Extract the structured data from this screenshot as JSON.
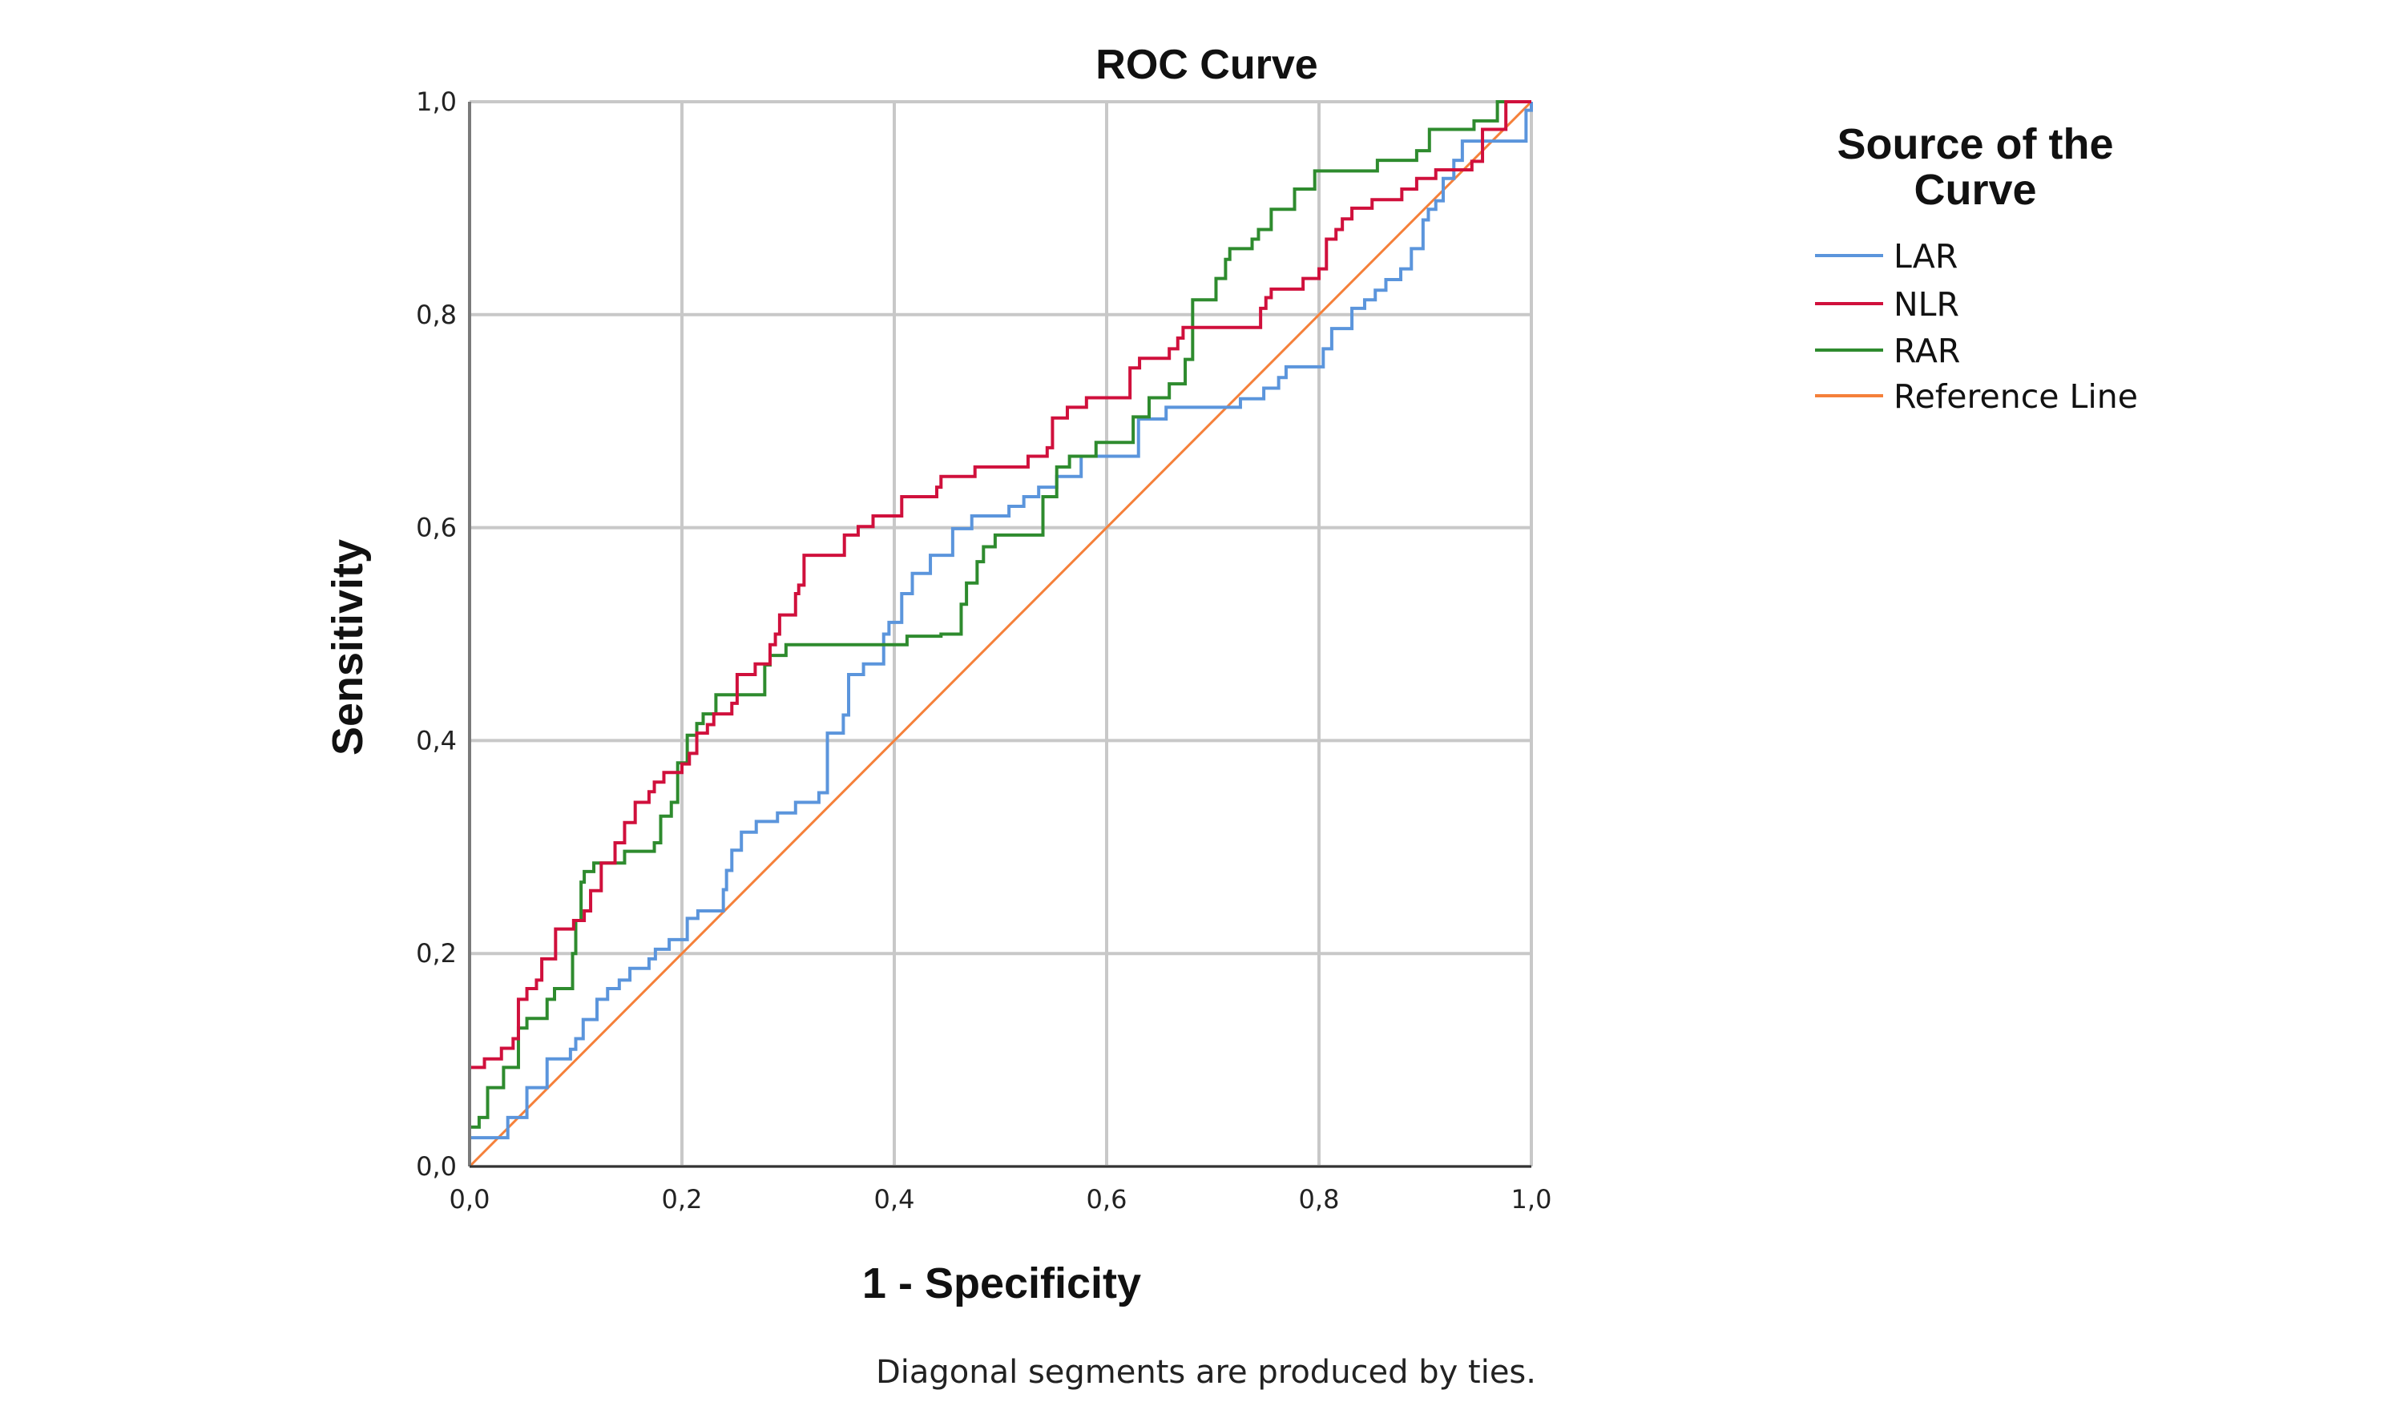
{
  "chart_data": {
    "type": "line",
    "title": "ROC Curve",
    "xlabel": "1 - Specificity",
    "ylabel": "Sensitivity",
    "footnote": "Diagonal segments are produced by ties.",
    "xlim": [
      0,
      1
    ],
    "ylim": [
      0,
      1
    ],
    "grid": true,
    "xticks": [
      "0,0",
      "0,2",
      "0,4",
      "0,6",
      "0,8",
      "1,0"
    ],
    "yticks": [
      "0,0",
      "0,2",
      "0,4",
      "0,6",
      "0,8",
      "1,0"
    ],
    "legend": {
      "title_lines": [
        "Source of the",
        "Curve"
      ],
      "placement": "right"
    },
    "series": [
      {
        "name": "LAR",
        "color": "#5b95dc",
        "step": true,
        "points": [
          [
            0,
            0
          ],
          [
            0,
            0.027
          ],
          [
            0.036,
            0.046
          ],
          [
            0.054,
            0.074
          ],
          [
            0.073,
            0.101
          ],
          [
            0.095,
            0.11
          ],
          [
            0.1,
            0.12
          ],
          [
            0.107,
            0.138
          ],
          [
            0.12,
            0.157
          ],
          [
            0.13,
            0.167
          ],
          [
            0.141,
            0.175
          ],
          [
            0.151,
            0.186
          ],
          [
            0.169,
            0.195
          ],
          [
            0.175,
            0.204
          ],
          [
            0.188,
            0.213
          ],
          [
            0.205,
            0.233
          ],
          [
            0.215,
            0.24
          ],
          [
            0.239,
            0.26
          ],
          [
            0.242,
            0.278
          ],
          [
            0.247,
            0.297
          ],
          [
            0.256,
            0.314
          ],
          [
            0.27,
            0.324
          ],
          [
            0.29,
            0.332
          ],
          [
            0.307,
            0.342
          ],
          [
            0.329,
            0.351
          ],
          [
            0.337,
            0.407
          ],
          [
            0.352,
            0.424
          ],
          [
            0.357,
            0.462
          ],
          [
            0.371,
            0.472
          ],
          [
            0.39,
            0.5
          ],
          [
            0.395,
            0.511
          ],
          [
            0.407,
            0.538
          ],
          [
            0.417,
            0.557
          ],
          [
            0.434,
            0.574
          ],
          [
            0.455,
            0.599
          ],
          [
            0.473,
            0.611
          ],
          [
            0.508,
            0.62
          ],
          [
            0.522,
            0.629
          ],
          [
            0.536,
            0.638
          ],
          [
            0.553,
            0.648
          ],
          [
            0.576,
            0.667
          ],
          [
            0.63,
            0.702
          ],
          [
            0.656,
            0.713
          ],
          [
            0.726,
            0.721
          ],
          [
            0.748,
            0.731
          ],
          [
            0.762,
            0.741
          ],
          [
            0.769,
            0.751
          ],
          [
            0.804,
            0.768
          ],
          [
            0.812,
            0.787
          ],
          [
            0.831,
            0.806
          ],
          [
            0.843,
            0.814
          ],
          [
            0.853,
            0.823
          ],
          [
            0.863,
            0.833
          ],
          [
            0.877,
            0.843
          ],
          [
            0.887,
            0.862
          ],
          [
            0.898,
            0.889
          ],
          [
            0.903,
            0.899
          ],
          [
            0.91,
            0.907
          ],
          [
            0.917,
            0.928
          ],
          [
            0.927,
            0.945
          ],
          [
            0.935,
            0.963
          ],
          [
            0.995,
            0.992
          ],
          [
            1,
            1
          ]
        ]
      },
      {
        "name": "NLR",
        "color": "#d0103c",
        "step": true,
        "points": [
          [
            0,
            0
          ],
          [
            0,
            0.093
          ],
          [
            0.014,
            0.101
          ],
          [
            0.03,
            0.111
          ],
          [
            0.041,
            0.12
          ],
          [
            0.046,
            0.157
          ],
          [
            0.054,
            0.167
          ],
          [
            0.063,
            0.175
          ],
          [
            0.068,
            0.195
          ],
          [
            0.081,
            0.223
          ],
          [
            0.098,
            0.231
          ],
          [
            0.108,
            0.24
          ],
          [
            0.114,
            0.259
          ],
          [
            0.124,
            0.285
          ],
          [
            0.137,
            0.304
          ],
          [
            0.146,
            0.323
          ],
          [
            0.156,
            0.342
          ],
          [
            0.169,
            0.352
          ],
          [
            0.174,
            0.361
          ],
          [
            0.183,
            0.37
          ],
          [
            0.2,
            0.378
          ],
          [
            0.207,
            0.388
          ],
          [
            0.214,
            0.407
          ],
          [
            0.224,
            0.415
          ],
          [
            0.23,
            0.425
          ],
          [
            0.247,
            0.435
          ],
          [
            0.252,
            0.462
          ],
          [
            0.269,
            0.472
          ],
          [
            0.283,
            0.49
          ],
          [
            0.288,
            0.5
          ],
          [
            0.292,
            0.518
          ],
          [
            0.307,
            0.538
          ],
          [
            0.31,
            0.546
          ],
          [
            0.315,
            0.574
          ],
          [
            0.353,
            0.593
          ],
          [
            0.366,
            0.601
          ],
          [
            0.38,
            0.611
          ],
          [
            0.407,
            0.629
          ],
          [
            0.44,
            0.638
          ],
          [
            0.444,
            0.648
          ],
          [
            0.476,
            0.657
          ],
          [
            0.526,
            0.667
          ],
          [
            0.544,
            0.675
          ],
          [
            0.549,
            0.703
          ],
          [
            0.563,
            0.713
          ],
          [
            0.581,
            0.722
          ],
          [
            0.622,
            0.75
          ],
          [
            0.631,
            0.759
          ],
          [
            0.659,
            0.768
          ],
          [
            0.667,
            0.778
          ],
          [
            0.672,
            0.788
          ],
          [
            0.745,
            0.806
          ],
          [
            0.75,
            0.816
          ],
          [
            0.755,
            0.824
          ],
          [
            0.785,
            0.834
          ],
          [
            0.8,
            0.843
          ],
          [
            0.807,
            0.871
          ],
          [
            0.816,
            0.88
          ],
          [
            0.822,
            0.89
          ],
          [
            0.831,
            0.9
          ],
          [
            0.85,
            0.908
          ],
          [
            0.878,
            0.918
          ],
          [
            0.892,
            0.928
          ],
          [
            0.91,
            0.936
          ],
          [
            0.944,
            0.944
          ],
          [
            0.954,
            0.974
          ],
          [
            0.976,
            1.0
          ],
          [
            1,
            1
          ]
        ]
      },
      {
        "name": "RAR",
        "color": "#2e8b2e",
        "step": true,
        "points": [
          [
            0,
            0
          ],
          [
            0,
            0.037
          ],
          [
            0.009,
            0.046
          ],
          [
            0.017,
            0.074
          ],
          [
            0.032,
            0.093
          ],
          [
            0.046,
            0.13
          ],
          [
            0.054,
            0.139
          ],
          [
            0.073,
            0.157
          ],
          [
            0.08,
            0.167
          ],
          [
            0.097,
            0.2
          ],
          [
            0.1,
            0.231
          ],
          [
            0.105,
            0.267
          ],
          [
            0.108,
            0.277
          ],
          [
            0.117,
            0.285
          ],
          [
            0.146,
            0.296
          ],
          [
            0.174,
            0.304
          ],
          [
            0.18,
            0.329
          ],
          [
            0.19,
            0.342
          ],
          [
            0.196,
            0.379
          ],
          [
            0.205,
            0.405
          ],
          [
            0.214,
            0.416
          ],
          [
            0.22,
            0.425
          ],
          [
            0.232,
            0.443
          ],
          [
            0.278,
            0.471
          ],
          [
            0.283,
            0.48
          ],
          [
            0.298,
            0.49
          ],
          [
            0.412,
            0.498
          ],
          [
            0.444,
            0.5
          ],
          [
            0.463,
            0.528
          ],
          [
            0.468,
            0.548
          ],
          [
            0.478,
            0.568
          ],
          [
            0.484,
            0.582
          ],
          [
            0.495,
            0.593
          ],
          [
            0.54,
            0.629
          ],
          [
            0.553,
            0.657
          ],
          [
            0.565,
            0.667
          ],
          [
            0.59,
            0.68
          ],
          [
            0.625,
            0.704
          ],
          [
            0.64,
            0.722
          ],
          [
            0.659,
            0.735
          ],
          [
            0.674,
            0.758
          ],
          [
            0.681,
            0.814
          ],
          [
            0.703,
            0.834
          ],
          [
            0.712,
            0.852
          ],
          [
            0.716,
            0.862
          ],
          [
            0.737,
            0.871
          ],
          [
            0.743,
            0.88
          ],
          [
            0.755,
            0.899
          ],
          [
            0.777,
            0.918
          ],
          [
            0.796,
            0.935
          ],
          [
            0.855,
            0.945
          ],
          [
            0.892,
            0.954
          ],
          [
            0.904,
            0.974
          ],
          [
            0.946,
            0.982
          ],
          [
            0.968,
            1.0
          ],
          [
            1,
            1
          ]
        ]
      },
      {
        "name": "Reference Line",
        "color": "#f5803a",
        "step": false,
        "points": [
          [
            0,
            0
          ],
          [
            1,
            1
          ]
        ]
      }
    ]
  }
}
